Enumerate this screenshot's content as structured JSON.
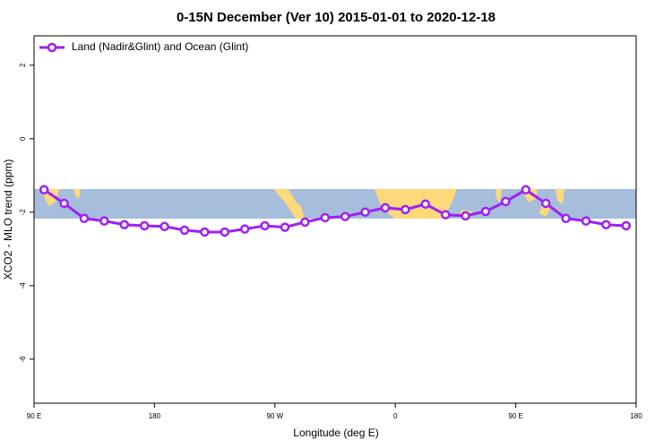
{
  "chart_data": {
    "type": "line",
    "title": "0-15N December (Ver 10)   2015-01-01 to 2020-12-18",
    "x_label": "Longitude (deg E)",
    "y_label": "XCO2 - MLO trend (ppm)",
    "x": [
      97.5,
      112.5,
      127.5,
      142.5,
      157.5,
      172.5,
      187.5,
      202.5,
      217.5,
      232.5,
      247.5,
      262.5,
      277.5,
      292.5,
      307.5,
      322.5,
      337.5,
      352.5,
      367.5,
      382.5,
      397.5,
      412.5,
      427.5,
      442.5,
      457.5,
      472.5,
      487.5,
      502.5,
      517.5,
      532.5
    ],
    "series": [
      {
        "name": "Land (Nadir&Glint) and Ocean (Glint)",
        "color": "#a020f0",
        "values": [
          -1.39,
          -1.76,
          -2.17,
          -2.24,
          -2.34,
          -2.37,
          -2.39,
          -2.49,
          -2.54,
          -2.54,
          -2.46,
          -2.37,
          -2.41,
          -2.27,
          -2.15,
          -2.12,
          -2.0,
          -1.88,
          -1.93,
          -1.78,
          -2.07,
          -2.1,
          -1.98,
          -1.71,
          -1.39,
          -1.76,
          -2.17,
          -2.24,
          -2.34,
          -2.37
        ]
      }
    ],
    "xlim": [
      90,
      540
    ],
    "xticks": [
      {
        "value": 90,
        "label": "90 E"
      },
      180,
      {
        "value": 270,
        "label": "90 W"
      },
      {
        "value": 360,
        "label": "0"
      },
      {
        "value": 450,
        "label": "90 E"
      },
      {
        "value": 540,
        "label": "180"
      }
    ],
    "ylim": [
      -7.2,
      2.8
    ],
    "yticks": [
      -6,
      -4,
      -2,
      0,
      2
    ],
    "legend": "top-left"
  }
}
